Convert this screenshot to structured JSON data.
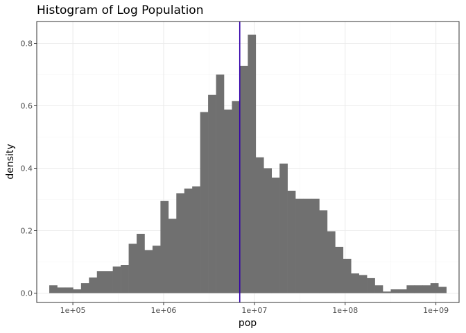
{
  "chart_data": {
    "type": "bar",
    "title": "Histogram of Log Population",
    "xlabel": "pop",
    "ylabel": "density",
    "x_scale": "log10",
    "xlim": [
      40000,
      1800000000
    ],
    "ylim": [
      -0.03,
      0.87
    ],
    "x_ticks": [
      {
        "value": 100000,
        "label": "1e+05"
      },
      {
        "value": 1000000,
        "label": "1e+06"
      },
      {
        "value": 10000000,
        "label": "1e+07"
      },
      {
        "value": 100000000,
        "label": "1e+08"
      },
      {
        "value": 1000000000,
        "label": "1e+09"
      }
    ],
    "y_ticks": [
      {
        "value": 0.0,
        "label": "0.0"
      },
      {
        "value": 0.2,
        "label": "0.2"
      },
      {
        "value": 0.4,
        "label": "0.4"
      },
      {
        "value": 0.6,
        "label": "0.6"
      },
      {
        "value": 0.8,
        "label": "0.8"
      }
    ],
    "grid": true,
    "bins": {
      "log10_start": 4.74,
      "log10_width": 0.0875,
      "density": [
        0.025,
        0.018,
        0.018,
        0.012,
        0.032,
        0.05,
        0.07,
        0.07,
        0.085,
        0.09,
        0.158,
        0.19,
        0.138,
        0.152,
        0.295,
        0.238,
        0.32,
        0.335,
        0.342,
        0.58,
        0.635,
        0.7,
        0.588,
        0.615,
        0.728,
        0.828,
        0.435,
        0.4,
        0.37,
        0.415,
        0.328,
        0.302,
        0.302,
        0.302,
        0.265,
        0.198,
        0.148,
        0.11,
        0.063,
        0.058,
        0.048,
        0.025,
        0.005,
        0.012,
        0.012,
        0.025,
        0.025,
        0.025,
        0.032,
        0.02
      ]
    },
    "vline": {
      "value": 6900000
    },
    "colors": {
      "bars": "#707070",
      "vline": "#3300aa",
      "grid_major": "#ebebeb",
      "grid_minor": "#f5f5f5",
      "panel_border": "#333333",
      "tick_label": "#4d4d4d"
    }
  }
}
